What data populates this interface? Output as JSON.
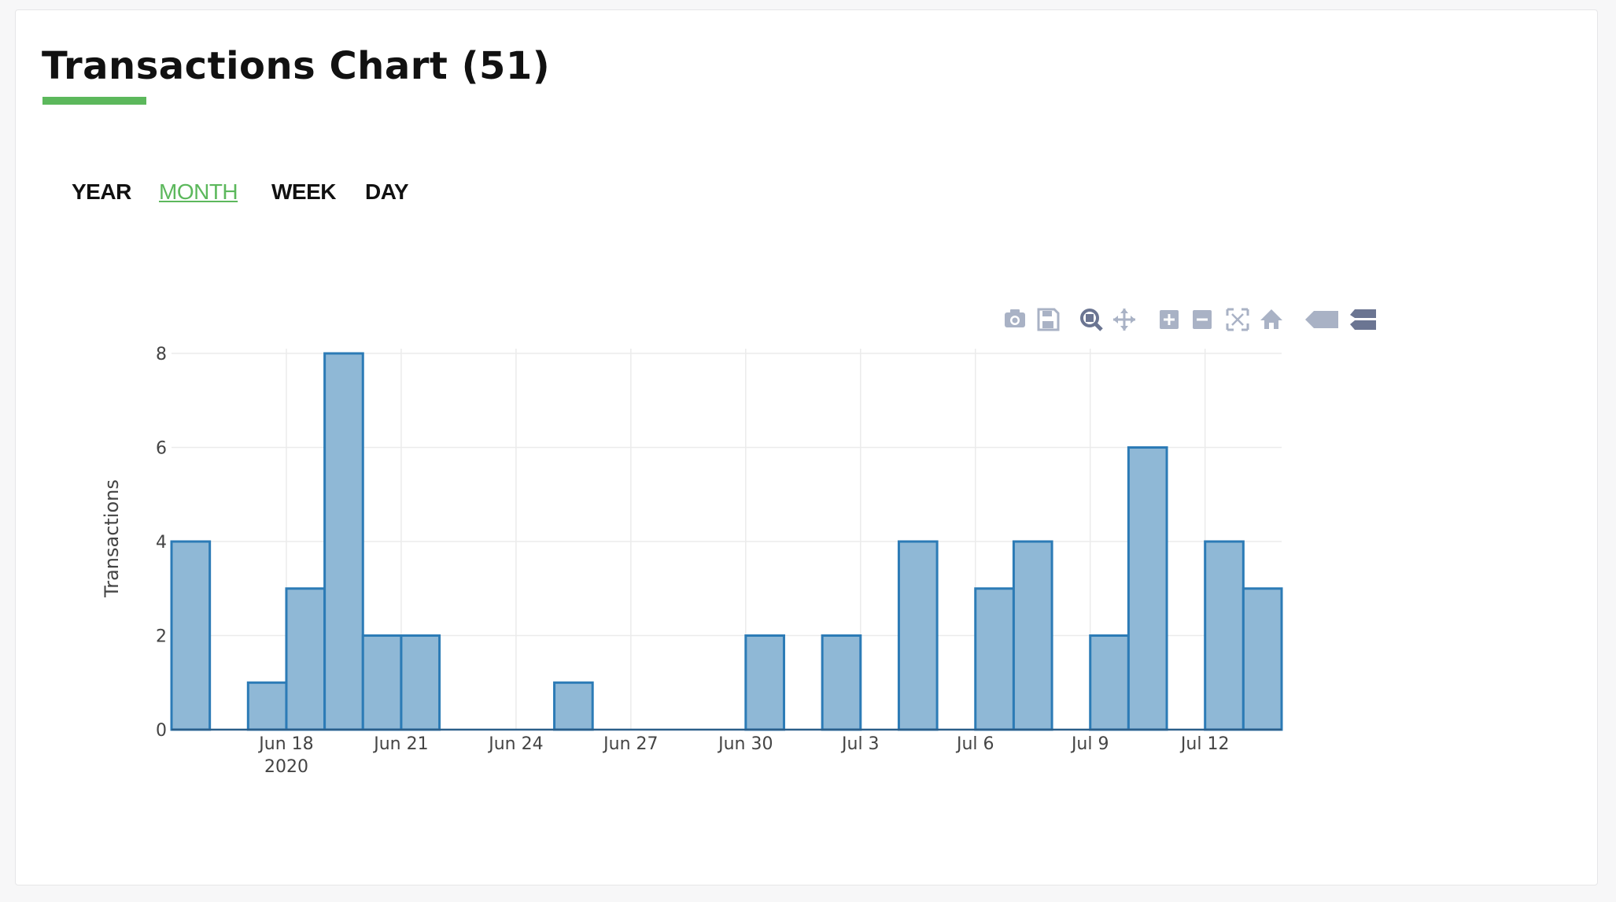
{
  "page": {
    "title": "Transactions Chart (51)",
    "accent_color": "#5cb85c"
  },
  "tabs": [
    {
      "label": "YEAR",
      "active": false
    },
    {
      "label": "MONTH",
      "active": true
    },
    {
      "label": "WEEK",
      "active": false
    },
    {
      "label": "DAY",
      "active": false
    }
  ],
  "modebar": [
    {
      "icon": "camera-icon"
    },
    {
      "icon": "save-icon"
    },
    {
      "icon": "zoom-icon"
    },
    {
      "icon": "pan-icon"
    },
    {
      "icon": "zoom-in-icon"
    },
    {
      "icon": "zoom-out-icon"
    },
    {
      "icon": "autoscale-icon"
    },
    {
      "icon": "home-icon"
    },
    {
      "icon": "hover-closest-icon"
    },
    {
      "icon": "hover-compare-icon"
    }
  ],
  "chart_data": {
    "type": "bar",
    "ylabel": "Transactions",
    "xlabel": "",
    "ylim": [
      0,
      8
    ],
    "yticks": [
      0,
      2,
      4,
      6,
      8
    ],
    "x_start": "Jun 15 2020",
    "x_range_days": [
      0,
      29
    ],
    "xticks": [
      {
        "day": 3,
        "label": "Jun 18",
        "sublabel": "2020"
      },
      {
        "day": 6,
        "label": "Jun 21"
      },
      {
        "day": 9,
        "label": "Jun 24"
      },
      {
        "day": 12,
        "label": "Jun 27"
      },
      {
        "day": 15,
        "label": "Jun 30"
      },
      {
        "day": 18,
        "label": "Jul 3"
      },
      {
        "day": 21,
        "label": "Jul 6"
      },
      {
        "day": 24,
        "label": "Jul 9"
      },
      {
        "day": 27,
        "label": "Jul 12"
      }
    ],
    "bin_width_days": 1,
    "bins": [
      {
        "start": 0,
        "value": 4
      },
      {
        "start": 1,
        "value": 0
      },
      {
        "start": 2,
        "value": 1
      },
      {
        "start": 3,
        "value": 3
      },
      {
        "start": 4,
        "value": 8
      },
      {
        "start": 5,
        "value": 2
      },
      {
        "start": 6,
        "value": 2
      },
      {
        "start": 7,
        "value": 0
      },
      {
        "start": 8,
        "value": 0
      },
      {
        "start": 9,
        "value": 0
      },
      {
        "start": 10,
        "value": 1
      },
      {
        "start": 11,
        "value": 0
      },
      {
        "start": 12,
        "value": 0
      },
      {
        "start": 13,
        "value": 0
      },
      {
        "start": 14,
        "value": 0
      },
      {
        "start": 15,
        "value": 2
      },
      {
        "start": 16,
        "value": 0
      },
      {
        "start": 17,
        "value": 2
      },
      {
        "start": 18,
        "value": 0
      },
      {
        "start": 19,
        "value": 4
      },
      {
        "start": 20,
        "value": 0
      },
      {
        "start": 21,
        "value": 3
      },
      {
        "start": 22,
        "value": 4
      },
      {
        "start": 23,
        "value": 0
      },
      {
        "start": 24,
        "value": 2
      },
      {
        "start": 25,
        "value": 6
      },
      {
        "start": 26,
        "value": 0
      },
      {
        "start": 27,
        "value": 4
      },
      {
        "start": 28,
        "value": 3
      }
    ],
    "bar_fill": "#8fb8d6",
    "bar_line": "#2c7bb6",
    "grid": true
  }
}
